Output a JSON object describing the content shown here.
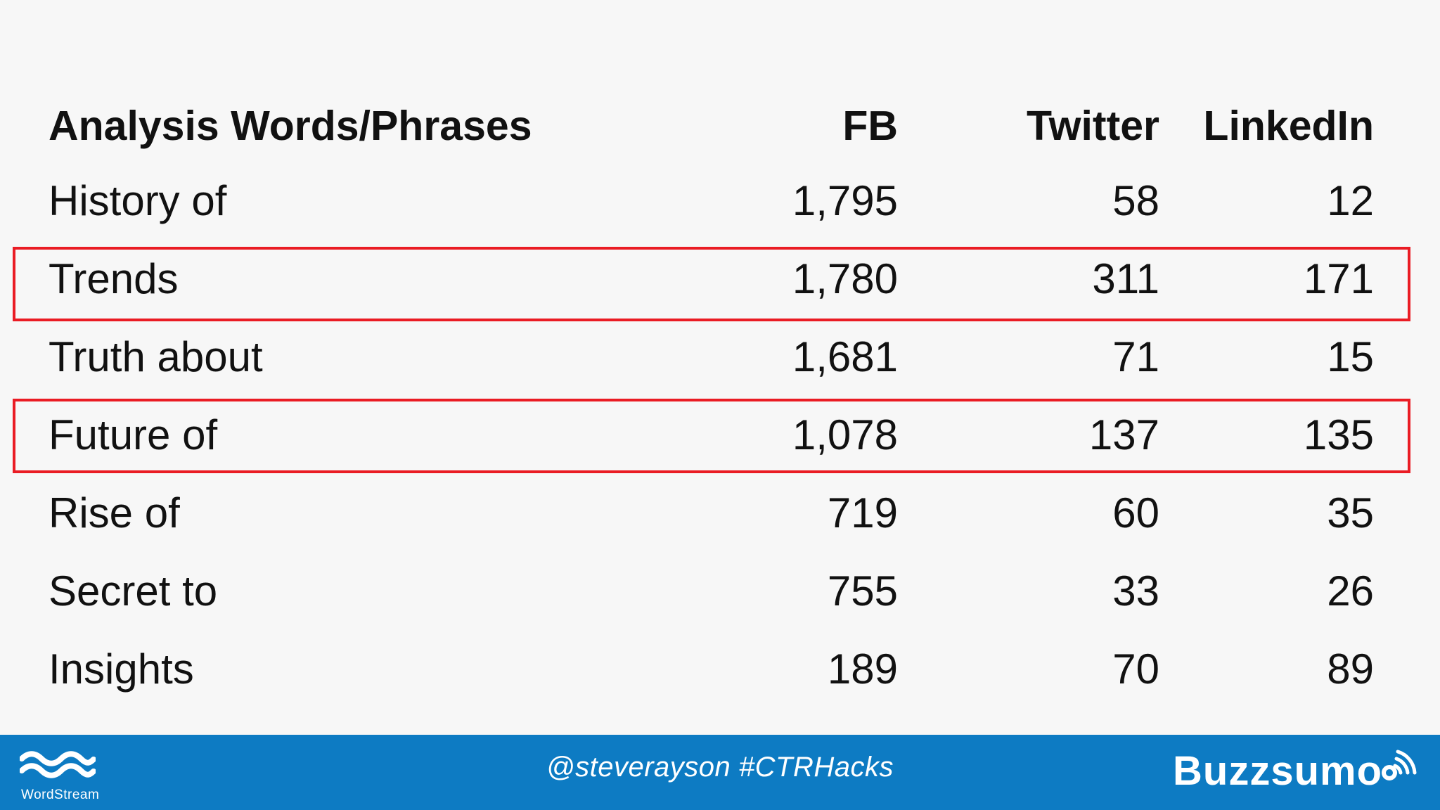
{
  "table": {
    "headers": {
      "phrase": "Analysis Words/Phrases",
      "fb": "FB",
      "twitter": "Twitter",
      "linkedin": "LinkedIn"
    },
    "rows": [
      {
        "phrase": "History of",
        "fb": "1,795",
        "twitter": "58",
        "linkedin": "12",
        "highlighted": false
      },
      {
        "phrase": "Trends",
        "fb": "1,780",
        "twitter": "311",
        "linkedin": "171",
        "highlighted": true
      },
      {
        "phrase": "Truth about",
        "fb": "1,681",
        "twitter": "71",
        "linkedin": "15",
        "highlighted": false
      },
      {
        "phrase": "Future of",
        "fb": "1,078",
        "twitter": "137",
        "linkedin": "135",
        "highlighted": true
      },
      {
        "phrase": "Rise of",
        "fb": "719",
        "twitter": "60",
        "linkedin": "35",
        "highlighted": false
      },
      {
        "phrase": "Secret to",
        "fb": "755",
        "twitter": "33",
        "linkedin": "26",
        "highlighted": false
      },
      {
        "phrase": "Insights",
        "fb": "189",
        "twitter": "70",
        "linkedin": "89",
        "highlighted": false
      }
    ]
  },
  "footer": {
    "wordstream_label": "WordStream",
    "handle_text": "@steverayson #CTRHacks",
    "buzzsumo_label": "Buzzsumo"
  },
  "colors": {
    "background": "#f7f7f7",
    "text": "#111111",
    "highlight": "#ea1c24",
    "footer": "#0d7bc3",
    "footer_text": "#ffffff"
  },
  "icons": {
    "wordstream": "wave-logo-icon",
    "buzzsumo": "signal-icon"
  }
}
